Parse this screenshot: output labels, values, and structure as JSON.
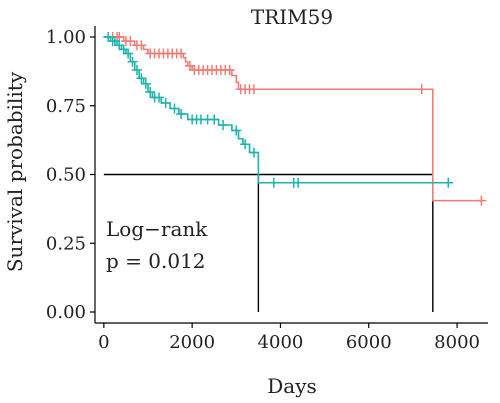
{
  "chart_data": {
    "type": "line",
    "title": "TRIM59",
    "xlabel": "Days",
    "ylabel": "Survival probability",
    "xlim": [
      -200,
      8700
    ],
    "ylim": [
      -0.04,
      1.04
    ],
    "x_ticks": [
      0,
      2000,
      4000,
      6000,
      8000
    ],
    "x_tick_labels": [
      "0",
      "2000",
      "4000",
      "6000",
      "8000"
    ],
    "y_ticks": [
      0.0,
      0.25,
      0.5,
      0.75,
      1.0
    ],
    "y_tick_labels": [
      "0.00",
      "0.25",
      "0.50",
      "0.75",
      "1.00"
    ],
    "grid": false,
    "legend": "none",
    "series": [
      {
        "color": "#F07C74",
        "step": [
          [
            0,
            1.0
          ],
          [
            450,
            1.0
          ],
          [
            450,
            0.985
          ],
          [
            700,
            0.985
          ],
          [
            700,
            0.97
          ],
          [
            900,
            0.97
          ],
          [
            900,
            0.955
          ],
          [
            1000,
            0.955
          ],
          [
            1000,
            0.94
          ],
          [
            1800,
            0.94
          ],
          [
            1800,
            0.925
          ],
          [
            1850,
            0.925
          ],
          [
            1850,
            0.91
          ],
          [
            1900,
            0.91
          ],
          [
            1900,
            0.895
          ],
          [
            2000,
            0.895
          ],
          [
            2000,
            0.88
          ],
          [
            2900,
            0.88
          ],
          [
            2900,
            0.86
          ],
          [
            3000,
            0.86
          ],
          [
            3000,
            0.835
          ],
          [
            3050,
            0.835
          ],
          [
            3050,
            0.81
          ],
          [
            7450,
            0.81
          ],
          [
            7450,
            0.405
          ],
          [
            8600,
            0.405
          ]
        ],
        "censored": [
          [
            200,
            1.0
          ],
          [
            300,
            1.0
          ],
          [
            350,
            1.0
          ],
          [
            500,
            0.985
          ],
          [
            600,
            0.985
          ],
          [
            750,
            0.97
          ],
          [
            850,
            0.97
          ],
          [
            1050,
            0.94
          ],
          [
            1150,
            0.94
          ],
          [
            1250,
            0.94
          ],
          [
            1350,
            0.94
          ],
          [
            1450,
            0.94
          ],
          [
            1550,
            0.94
          ],
          [
            1650,
            0.94
          ],
          [
            1750,
            0.94
          ],
          [
            1950,
            0.895
          ],
          [
            2050,
            0.88
          ],
          [
            2150,
            0.88
          ],
          [
            2250,
            0.88
          ],
          [
            2350,
            0.88
          ],
          [
            2450,
            0.88
          ],
          [
            2550,
            0.88
          ],
          [
            2650,
            0.88
          ],
          [
            2750,
            0.88
          ],
          [
            2850,
            0.88
          ],
          [
            3100,
            0.81
          ],
          [
            3200,
            0.81
          ],
          [
            3300,
            0.81
          ],
          [
            3400,
            0.81
          ],
          [
            7200,
            0.81
          ],
          [
            8550,
            0.405
          ]
        ]
      },
      {
        "color": "#1BB3AC",
        "step": [
          [
            0,
            1.0
          ],
          [
            150,
            1.0
          ],
          [
            150,
            0.985
          ],
          [
            300,
            0.985
          ],
          [
            300,
            0.97
          ],
          [
            400,
            0.97
          ],
          [
            400,
            0.955
          ],
          [
            500,
            0.955
          ],
          [
            500,
            0.94
          ],
          [
            600,
            0.94
          ],
          [
            600,
            0.91
          ],
          [
            700,
            0.91
          ],
          [
            700,
            0.88
          ],
          [
            800,
            0.88
          ],
          [
            800,
            0.85
          ],
          [
            900,
            0.85
          ],
          [
            900,
            0.83
          ],
          [
            1000,
            0.83
          ],
          [
            1000,
            0.8
          ],
          [
            1100,
            0.8
          ],
          [
            1100,
            0.78
          ],
          [
            1300,
            0.78
          ],
          [
            1300,
            0.76
          ],
          [
            1500,
            0.76
          ],
          [
            1500,
            0.74
          ],
          [
            1700,
            0.74
          ],
          [
            1700,
            0.72
          ],
          [
            1900,
            0.72
          ],
          [
            1900,
            0.7
          ],
          [
            2600,
            0.7
          ],
          [
            2600,
            0.68
          ],
          [
            2900,
            0.68
          ],
          [
            2900,
            0.66
          ],
          [
            3050,
            0.66
          ],
          [
            3050,
            0.63
          ],
          [
            3150,
            0.63
          ],
          [
            3150,
            0.61
          ],
          [
            3300,
            0.61
          ],
          [
            3300,
            0.58
          ],
          [
            3500,
            0.58
          ],
          [
            3500,
            0.47
          ],
          [
            7850,
            0.47
          ]
        ],
        "censored": [
          [
            100,
            1.0
          ],
          [
            200,
            0.985
          ],
          [
            250,
            0.985
          ],
          [
            350,
            0.97
          ],
          [
            450,
            0.955
          ],
          [
            550,
            0.94
          ],
          [
            650,
            0.91
          ],
          [
            750,
            0.88
          ],
          [
            850,
            0.85
          ],
          [
            950,
            0.83
          ],
          [
            1050,
            0.8
          ],
          [
            1150,
            0.78
          ],
          [
            1250,
            0.78
          ],
          [
            1400,
            0.76
          ],
          [
            1600,
            0.74
          ],
          [
            1750,
            0.72
          ],
          [
            2000,
            0.7
          ],
          [
            2100,
            0.7
          ],
          [
            2200,
            0.7
          ],
          [
            2350,
            0.7
          ],
          [
            2500,
            0.7
          ],
          [
            2700,
            0.68
          ],
          [
            3000,
            0.66
          ],
          [
            3200,
            0.61
          ],
          [
            3400,
            0.58
          ],
          [
            3850,
            0.47
          ],
          [
            4300,
            0.47
          ],
          [
            4400,
            0.47
          ],
          [
            7800,
            0.47
          ]
        ]
      }
    ],
    "median_lines": {
      "color": "#000000",
      "y": 0.5,
      "x_start": 0,
      "x_end": 7450,
      "drops": [
        3500,
        7450
      ]
    },
    "annotations": [
      "Log−rank",
      "p = 0.012"
    ]
  }
}
